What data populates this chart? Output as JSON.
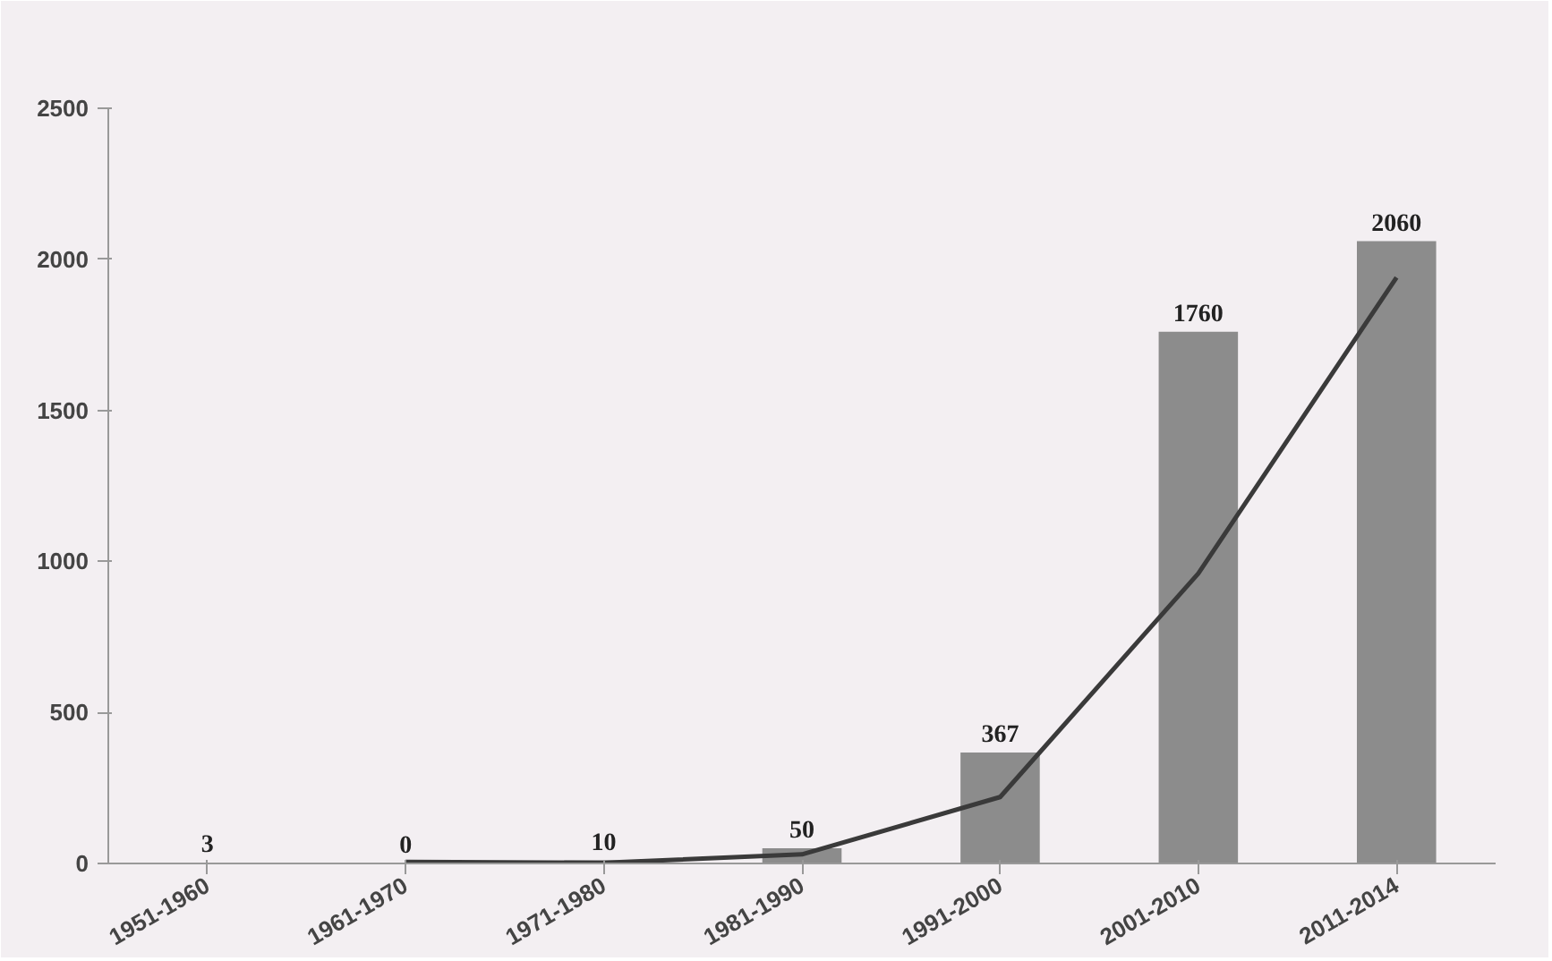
{
  "chart_data": {
    "type": "bar",
    "categories": [
      "1951-1960",
      "1961-1970",
      "1971-1980",
      "1981-1990",
      "1991-2000",
      "2001-2010",
      "2011-2014"
    ],
    "series": [
      {
        "color": "#8c8c8c",
        "values": [
          3,
          0,
          10,
          50,
          367,
          1760,
          2060
        ],
        "data_labels": true
      },
      {
        "type": "line",
        "color": "#3a3a3a",
        "values": [
          null,
          5,
          2,
          30,
          220,
          960,
          1940
        ]
      }
    ],
    "ylim": [
      0,
      2500
    ],
    "yticks": [
      0,
      500,
      1000,
      1500,
      2000,
      2500
    ]
  }
}
